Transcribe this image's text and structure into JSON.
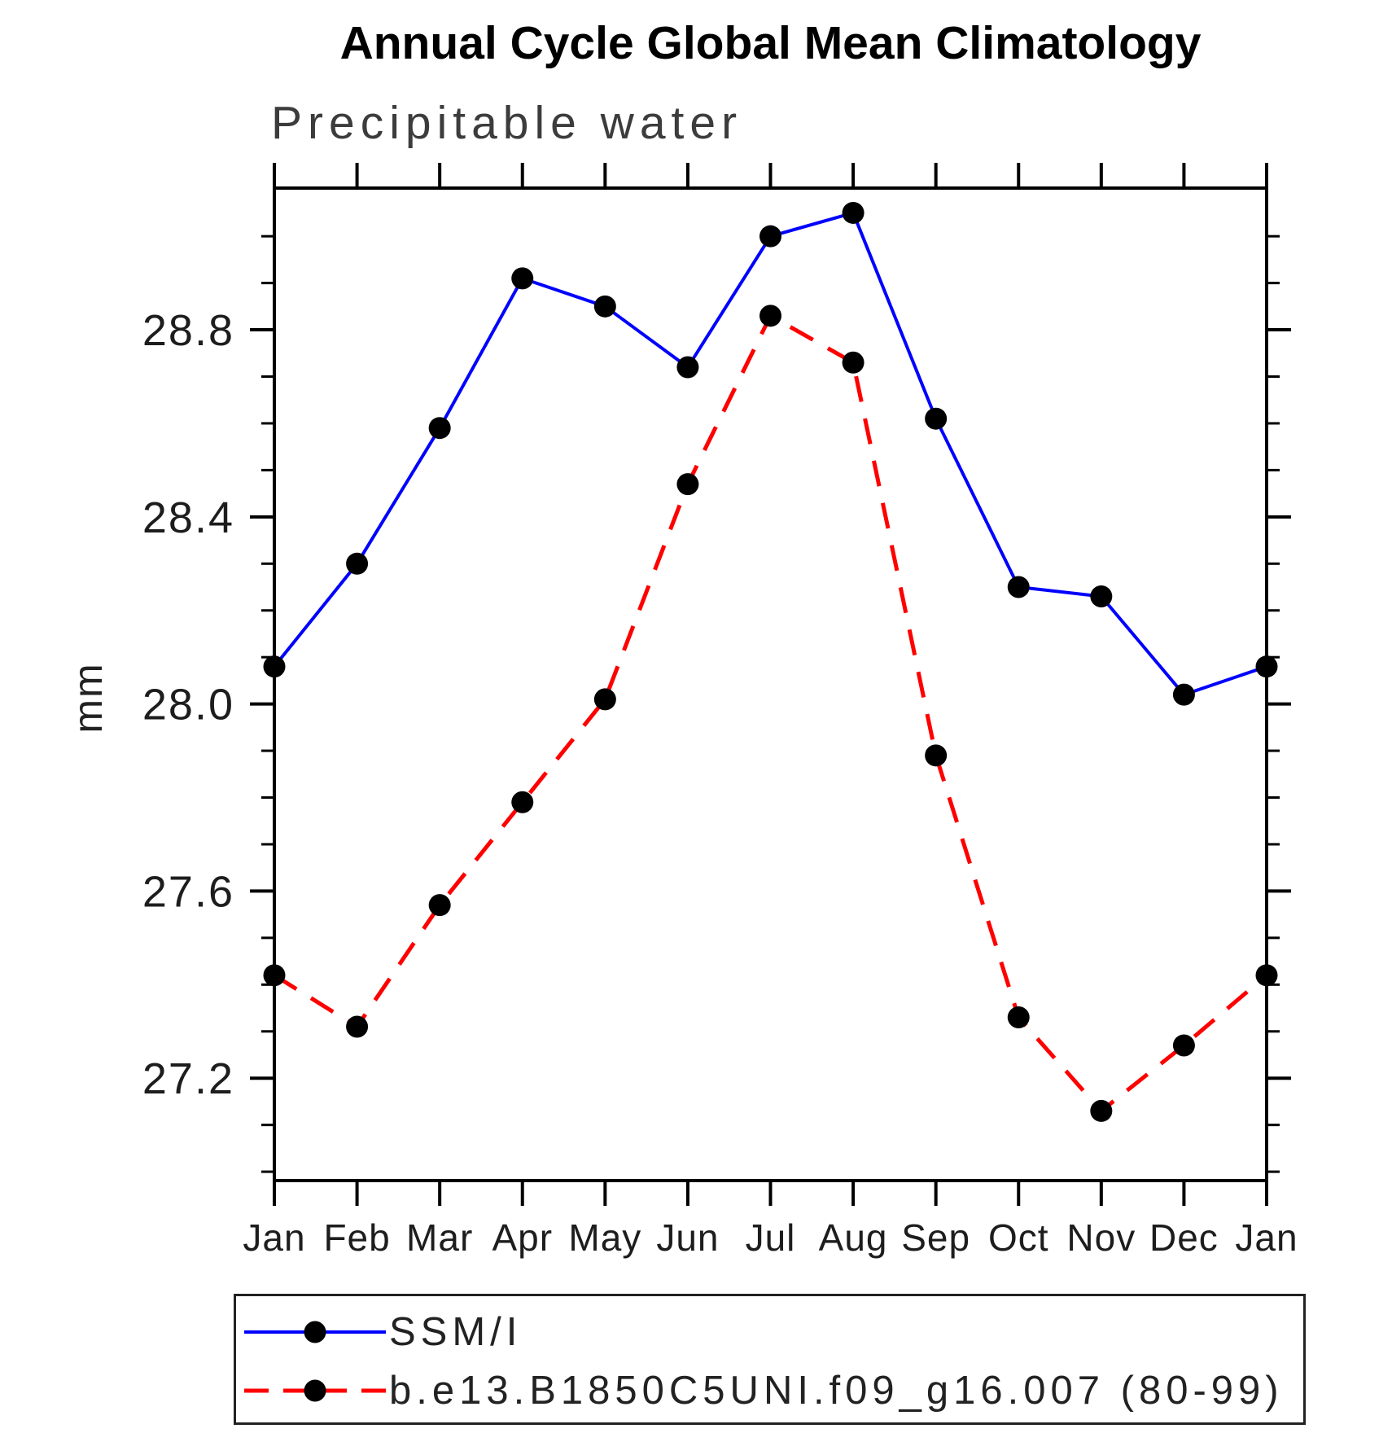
{
  "title": "Annual Cycle Global Mean Climatology",
  "subtitle": "Precipitable water",
  "ylabel": "mm",
  "colors": {
    "obs_line": "#0000ff",
    "model_line": "#ff0000",
    "marker": "#000000",
    "axis": "#000000"
  },
  "chart_data": {
    "type": "line",
    "title": "Annual Cycle Global Mean Climatology",
    "subtitle": "Precipitable water",
    "xlabel": "",
    "ylabel": "mm",
    "categories": [
      "Jan",
      "Feb",
      "Mar",
      "Apr",
      "May",
      "Jun",
      "Jul",
      "Aug",
      "Sep",
      "Oct",
      "Nov",
      "Dec",
      "Jan"
    ],
    "series": [
      {
        "name": "SSM/I",
        "color": "#0000ff",
        "line_style": "solid",
        "marker": "filled-circle",
        "values": [
          28.08,
          28.3,
          28.59,
          28.91,
          28.85,
          28.72,
          29.0,
          29.05,
          28.61,
          28.25,
          28.23,
          28.02,
          28.08
        ]
      },
      {
        "name": "b.e13.B1850C5UNI.f09_g16.007 (80-99)",
        "color": "#ff0000",
        "line_style": "dashed",
        "marker": "filled-circle",
        "values": [
          27.42,
          27.31,
          27.57,
          27.79,
          28.01,
          28.47,
          28.83,
          28.73,
          27.89,
          27.33,
          27.13,
          27.27,
          27.42
        ]
      }
    ],
    "ytick_labels": [
      "27.2",
      "27.6",
      "28.0",
      "28.4",
      "28.8"
    ],
    "yticks_major": [
      27.2,
      27.6,
      28.0,
      28.4,
      28.8
    ],
    "ytick_minor_step": 0.1,
    "ytick_minor_range": [
      27.0,
      29.0
    ],
    "ylim": [
      26.981,
      29.103
    ],
    "grid": false,
    "legend_position": "bottom"
  }
}
